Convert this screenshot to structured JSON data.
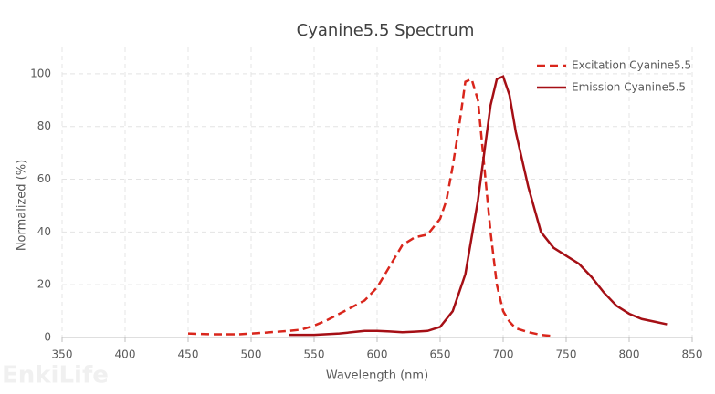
{
  "chart_data": {
    "type": "line",
    "title": "Cyanine5.5  Spectrum",
    "watermark": "EnkiLife",
    "x_label": "Wavelength (nm)",
    "y_label": "Normalized (%)",
    "xlim": [
      350,
      850
    ],
    "xticks": [
      350,
      400,
      450,
      500,
      550,
      600,
      650,
      700,
      750,
      800,
      850
    ],
    "ylim": [
      0,
      110
    ],
    "yticks": [
      0,
      20,
      40,
      60,
      80,
      100
    ],
    "grid": true,
    "legend": "upper right",
    "series": [
      {
        "name": "Excitation Cyanine5.5",
        "color": "#d9261c",
        "dashed": true,
        "x": [
          450,
          470,
          490,
          510,
          530,
          540,
          550,
          560,
          570,
          580,
          590,
          600,
          610,
          620,
          630,
          640,
          650,
          655,
          660,
          665,
          670,
          675,
          680,
          685,
          690,
          695,
          700,
          705,
          710,
          720,
          730,
          740
        ],
        "values": [
          1.5,
          1.2,
          1.2,
          1.8,
          2.5,
          3,
          4.5,
          6.5,
          9,
          11.5,
          14,
          19,
          27,
          35,
          38,
          39,
          45,
          52,
          65,
          80,
          97,
          98,
          90,
          65,
          40,
          20,
          10,
          6,
          3.5,
          2,
          1,
          0.5
        ]
      },
      {
        "name": "Emission Cyanine5.5",
        "color": "#a50f15",
        "dashed": false,
        "x": [
          530,
          550,
          570,
          590,
          600,
          610,
          620,
          630,
          640,
          650,
          660,
          670,
          680,
          685,
          690,
          695,
          700,
          705,
          710,
          720,
          730,
          740,
          750,
          760,
          770,
          780,
          790,
          800,
          810,
          820,
          830
        ],
        "values": [
          1,
          1,
          1.5,
          2.5,
          2.5,
          2.3,
          2,
          2.2,
          2.5,
          4,
          10,
          24,
          52,
          70,
          88,
          98,
          99,
          92,
          78,
          57,
          40,
          34,
          31,
          28,
          23,
          17,
          12,
          9,
          7,
          6,
          5
        ]
      }
    ]
  }
}
